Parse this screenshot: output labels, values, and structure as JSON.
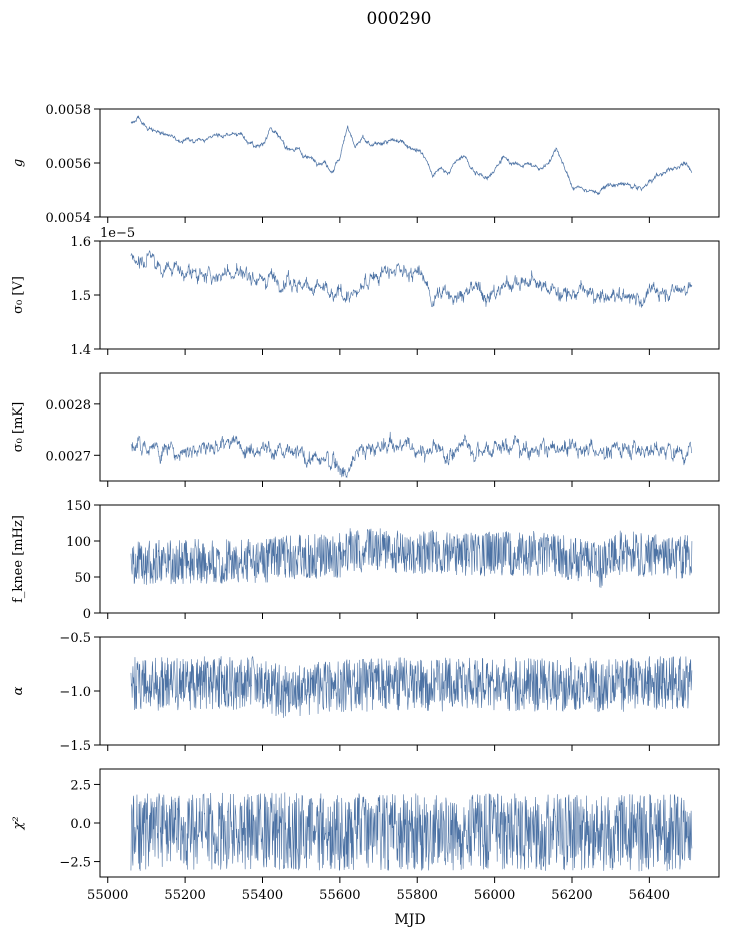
{
  "figure": {
    "title": "000290",
    "xlabel": "MJD"
  },
  "colors": {
    "series": "#4c72a4",
    "axes": "#000000"
  },
  "chart_data": [
    {
      "type": "line",
      "panel": "g",
      "ylabel": "g",
      "xlim": [
        54980,
        56580
      ],
      "ylim": [
        0.0054,
        0.0058
      ],
      "yticks": [
        "0.0054",
        "0.0056",
        "0.0058"
      ],
      "grid": false,
      "series": [
        {
          "x": [
            55060,
            55080,
            55100,
            55140,
            55180,
            55220,
            55260,
            55300,
            55340,
            55380,
            55400,
            55420,
            55440,
            55460,
            55490,
            55520,
            55560,
            55580,
            55600,
            55620,
            55640,
            55660,
            55680,
            55720,
            55760,
            55800,
            55820,
            55840,
            55860,
            55880,
            55900,
            55920,
            55950,
            55980,
            56000,
            56020,
            56060,
            56080,
            56120,
            56140,
            56160,
            56200,
            56240,
            56270,
            56300,
            56340,
            56380,
            56400,
            56420,
            56460,
            56490,
            56510
          ],
          "values": [
            0.00575,
            0.00577,
            0.00573,
            0.00571,
            0.00569,
            0.00568,
            0.0057,
            0.0057,
            0.00571,
            0.00566,
            0.00567,
            0.00573,
            0.0057,
            0.00566,
            0.00565,
            0.00562,
            0.0056,
            0.00557,
            0.00562,
            0.00574,
            0.00566,
            0.00569,
            0.00566,
            0.00568,
            0.00568,
            0.00565,
            0.00562,
            0.00555,
            0.00558,
            0.00557,
            0.0056,
            0.00563,
            0.00556,
            0.00555,
            0.00558,
            0.00562,
            0.00559,
            0.0056,
            0.00558,
            0.0056,
            0.00566,
            0.00551,
            0.0055,
            0.00549,
            0.00552,
            0.00552,
            0.0055,
            0.00553,
            0.00555,
            0.00558,
            0.0056,
            0.00556
          ],
          "noise": 6e-06
        }
      ]
    },
    {
      "type": "line",
      "panel": "sigma0_V",
      "ylabel": "σ₀ [V]",
      "offset_text": "1e−5",
      "xlim": [
        54980,
        56580
      ],
      "ylim": [
        1.4,
        1.6
      ],
      "yticks": [
        "1.4",
        "1.5",
        "1.6"
      ],
      "grid": false,
      "series": [
        {
          "x": [
            55060,
            55100,
            55150,
            55200,
            55250,
            55300,
            55350,
            55400,
            55450,
            55500,
            55550,
            55580,
            55600,
            55640,
            55680,
            55720,
            55760,
            55800,
            55820,
            55840,
            55870,
            55900,
            55950,
            56000,
            56030,
            56060,
            56100,
            56140,
            56180,
            56220,
            56260,
            56280,
            56300,
            56340,
            56380,
            56420,
            56460,
            56490,
            56510
          ],
          "values": [
            1.57,
            1.57,
            1.55,
            1.545,
            1.53,
            1.54,
            1.54,
            1.535,
            1.535,
            1.52,
            1.515,
            1.49,
            1.505,
            1.495,
            1.535,
            1.54,
            1.54,
            1.54,
            1.525,
            1.49,
            1.505,
            1.5,
            1.51,
            1.5,
            1.525,
            1.525,
            1.52,
            1.515,
            1.5,
            1.505,
            1.5,
            1.49,
            1.495,
            1.5,
            1.495,
            1.505,
            1.51,
            1.515,
            1.51
          ],
          "noise": 0.011
        }
      ]
    },
    {
      "type": "line",
      "panel": "sigma0_mK",
      "ylabel": "σ₀ [mK]",
      "xlim": [
        54980,
        56580
      ],
      "ylim": [
        0.00265,
        0.00286
      ],
      "yticks": [
        "0.0027",
        "0.0028"
      ],
      "grid": false,
      "series": [
        {
          "x": [
            55060,
            55100,
            55150,
            55200,
            55250,
            55300,
            55350,
            55400,
            55450,
            55500,
            55550,
            55600,
            55620,
            55640,
            55680,
            55720,
            55760,
            55800,
            55840,
            55880,
            55920,
            55960,
            56000,
            56040,
            56080,
            56120,
            56160,
            56200,
            56260,
            56300,
            56350,
            56400,
            56450,
            56510
          ],
          "values": [
            0.00272,
            0.00272,
            0.00271,
            0.00271,
            0.00272,
            0.00272,
            0.00272,
            0.00272,
            0.0027,
            0.0027,
            0.00269,
            0.00268,
            0.00267,
            0.00271,
            0.00271,
            0.00272,
            0.00272,
            0.00271,
            0.00271,
            0.0027,
            0.00272,
            0.00271,
            0.00272,
            0.00272,
            0.00272,
            0.00271,
            0.00271,
            0.00272,
            0.00271,
            0.00271,
            0.00272,
            0.00271,
            0.00271,
            0.00271
          ],
          "noise": 1.2e-05
        }
      ]
    },
    {
      "type": "line",
      "panel": "fknee",
      "ylabel": "f_knee [mHz]",
      "xlim": [
        54980,
        56580
      ],
      "ylim": [
        0,
        150
      ],
      "yticks": [
        "0",
        "50",
        "100",
        "150"
      ],
      "grid": false,
      "series": [
        {
          "x": [
            55060,
            55200,
            55400,
            55450,
            55600,
            55620,
            55800,
            55900,
            56000,
            56100,
            56200,
            56280,
            56300,
            56400,
            56510
          ],
          "values": [
            70,
            72,
            72,
            78,
            80,
            88,
            85,
            82,
            82,
            83,
            75,
            65,
            85,
            80,
            78
          ],
          "noise": 45
        }
      ]
    },
    {
      "type": "line",
      "panel": "alpha",
      "ylabel": "α",
      "xlim": [
        54980,
        56580
      ],
      "ylim": [
        -1.5,
        -0.5
      ],
      "yticks": [
        "−1.5",
        "−1.0",
        "−0.5"
      ],
      "grid": false,
      "series": [
        {
          "x": [
            55060,
            55200,
            55400,
            55450,
            55600,
            55800,
            55900,
            56000,
            56100,
            56200,
            56300,
            56400,
            56510
          ],
          "values": [
            -0.93,
            -0.93,
            -0.92,
            -1.02,
            -0.95,
            -0.93,
            -0.94,
            -0.93,
            -0.95,
            -0.93,
            -0.95,
            -0.93,
            -0.93
          ],
          "noise": 0.36
        }
      ]
    },
    {
      "type": "line",
      "panel": "chi2",
      "ylabel": "χ²",
      "xlim": [
        54980,
        56580
      ],
      "ylim": [
        -3.5,
        3.5
      ],
      "yticks": [
        "−2.5",
        "0.0",
        "2.5"
      ],
      "grid": false,
      "series": [
        {
          "x": [
            55060,
            55200,
            55400,
            55600,
            55800,
            56000,
            56200,
            56300,
            56400,
            56510
          ],
          "values": [
            -0.6,
            -0.6,
            -0.5,
            -0.6,
            -0.6,
            -0.6,
            -0.6,
            -0.7,
            -0.6,
            -0.6
          ],
          "noise": 3.6
        }
      ]
    }
  ],
  "xaxis": {
    "ticks": [
      55000,
      55200,
      55400,
      55600,
      55800,
      56000,
      56200,
      56400
    ],
    "tick_labels": [
      "55000",
      "55200",
      "55400",
      "55600",
      "55800",
      "56000",
      "56200",
      "56400"
    ]
  }
}
